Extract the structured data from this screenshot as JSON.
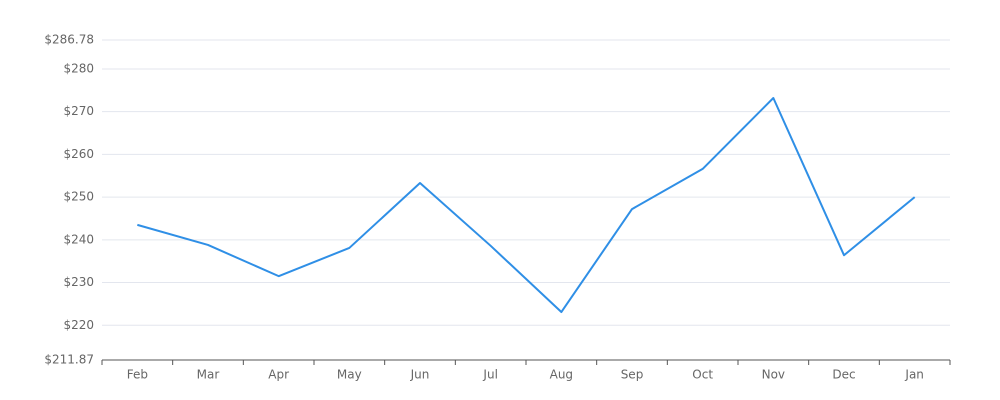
{
  "chart_data": {
    "type": "line",
    "categories": [
      "Feb",
      "Mar",
      "Apr",
      "May",
      "Jun",
      "Jul",
      "Aug",
      "Sep",
      "Oct",
      "Nov",
      "Dec",
      "Jan"
    ],
    "values": [
      243.5,
      238.8,
      231.5,
      238.1,
      253.3,
      238.6,
      223.1,
      247.2,
      256.6,
      273.2,
      236.4,
      250.0
    ],
    "color": "#2f8fe6",
    "ylim": [
      211.87,
      286.78
    ],
    "yticks": [
      {
        "value": 211.87,
        "label": "$211.87"
      },
      {
        "value": 220,
        "label": "$220"
      },
      {
        "value": 230,
        "label": "$230"
      },
      {
        "value": 240,
        "label": "$240"
      },
      {
        "value": 250,
        "label": "$250"
      },
      {
        "value": 260,
        "label": "$260"
      },
      {
        "value": 270,
        "label": "$270"
      },
      {
        "value": 280,
        "label": "$280"
      },
      {
        "value": 286.78,
        "label": "$286.78"
      }
    ],
    "grid": true
  }
}
